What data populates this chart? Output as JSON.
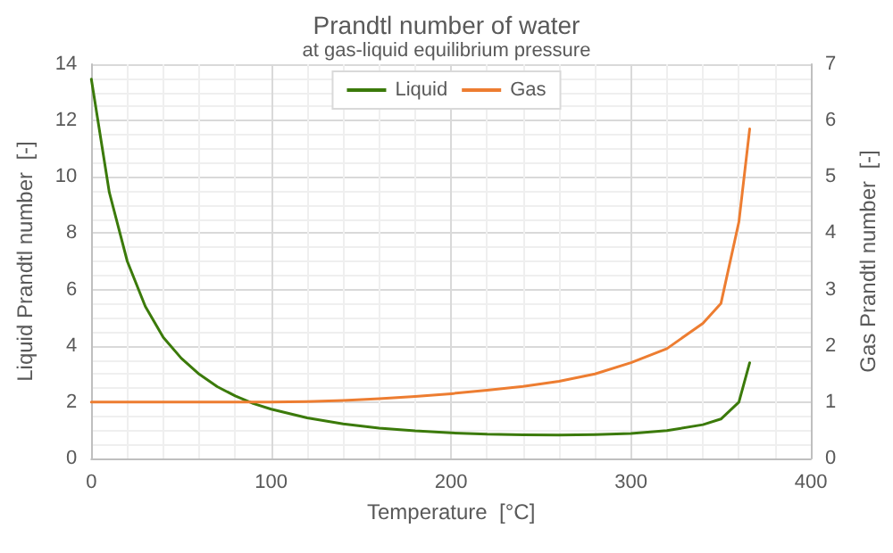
{
  "chart_data": {
    "type": "line",
    "title": "Prandtl number of water",
    "subtitle": "at gas-liquid equilibrium pressure",
    "xlabel": "Temperature  [°C]",
    "ylabel": "Liquid Prandtl number  [-]",
    "y2label": "Gas Prandtl number  [-]",
    "x": [
      0.01,
      10,
      20,
      30,
      40,
      50,
      60,
      70,
      80,
      90,
      100,
      120,
      140,
      160,
      180,
      200,
      220,
      240,
      260,
      280,
      300,
      320,
      340,
      350,
      360,
      366
    ],
    "series": [
      {
        "name": "Liquid",
        "color": "#3b7a0a",
        "values": [
          13.47,
          9.45,
          7.0,
          5.4,
          4.3,
          3.56,
          2.99,
          2.55,
          2.22,
          1.95,
          1.75,
          1.44,
          1.23,
          1.08,
          0.98,
          0.91,
          0.86,
          0.84,
          0.83,
          0.85,
          0.89,
          0.99,
          1.2,
          1.4,
          2.0,
          3.4
        ]
      },
      {
        "name": "Gas",
        "color": "#ed7d31",
        "axis": "y2",
        "values": [
          1.0,
          1.0,
          1.0,
          1.0,
          1.0,
          1.0,
          1.0,
          1.0,
          1.0,
          1.0,
          1.0,
          1.01,
          1.03,
          1.06,
          1.1,
          1.15,
          1.21,
          1.28,
          1.37,
          1.5,
          1.7,
          1.95,
          2.4,
          2.75,
          4.2,
          5.85
        ]
      }
    ],
    "xlim": [
      0,
      400
    ],
    "xticks": [
      0,
      100,
      200,
      300,
      400
    ],
    "ylim": [
      0,
      14
    ],
    "yticks": [
      0,
      2,
      4,
      6,
      8,
      10,
      12,
      14
    ],
    "y2lim": [
      0,
      7
    ],
    "y2ticks": [
      0,
      1,
      2,
      3,
      4,
      5,
      6,
      7
    ],
    "grid": true,
    "legend": "top",
    "marker": "none",
    "line_style": "solid"
  }
}
